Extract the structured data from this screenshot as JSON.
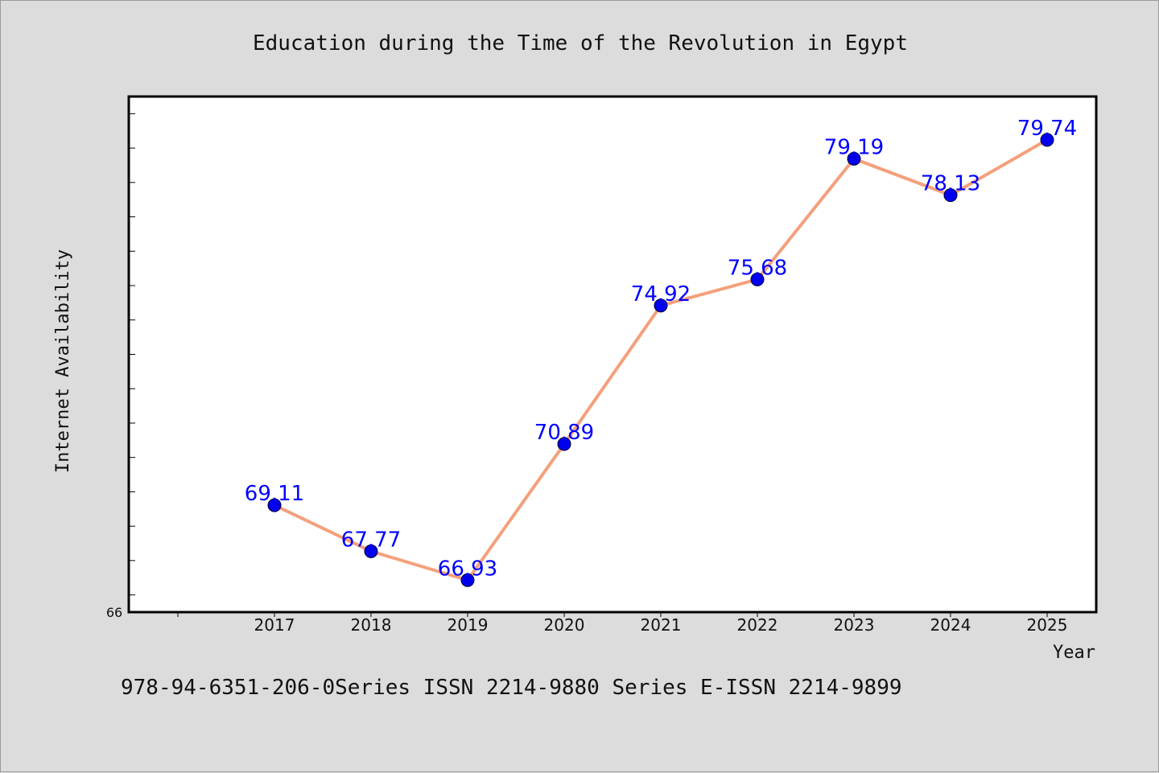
{
  "chart_data": {
    "type": "line",
    "title": "Education during the Time of the Revolution in Egypt",
    "xlabel": "Year",
    "ylabel": "Internet Availability",
    "categories": [
      "2017",
      "2018",
      "2019",
      "2020",
      "2021",
      "2022",
      "2023",
      "2024",
      "2025"
    ],
    "series": [
      {
        "values": [
          69.11,
          67.77,
          66.93,
          70.89,
          74.92,
          75.68,
          79.19,
          78.13,
          79.74
        ],
        "line_color": "#f4a07c",
        "marker_color": "#0000ee",
        "label_color": "#0000ff"
      }
    ],
    "ylim": [
      66,
      81
    ],
    "y_tick_labels": [
      "66"
    ],
    "grid": false,
    "plot_background": "#ffffff",
    "figure_background": "#dcdcdc"
  },
  "footer_text": "978-94-6351-206-0Series ISSN 2214-9880 Series E-ISSN 2214-9899"
}
